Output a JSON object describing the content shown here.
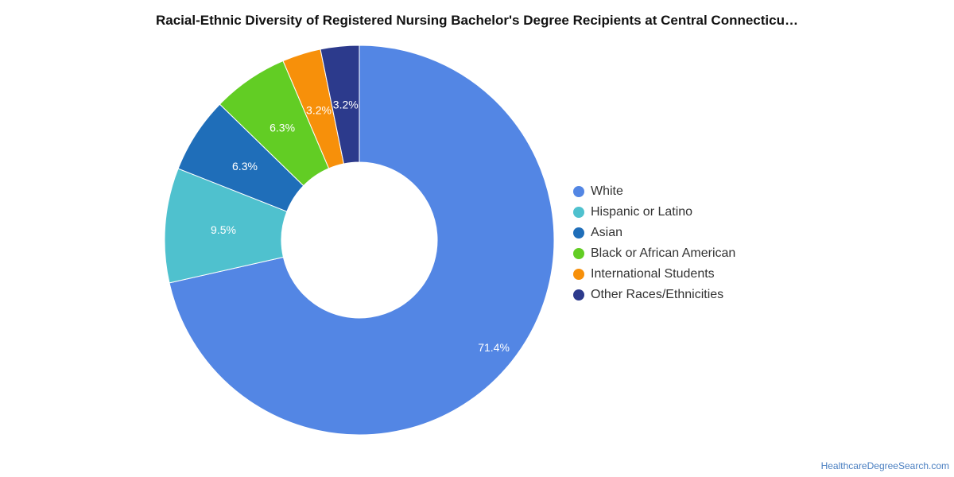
{
  "chart_data": {
    "type": "pie",
    "variant": "donut",
    "title": "Racial-Ethnic Diversity of Registered Nursing Bachelor's Degree Recipients at Central Connecticu…",
    "legend_position": "right",
    "slices": [
      {
        "label": "White",
        "value": 71.4,
        "display": "71.4%",
        "color": "#5386e4"
      },
      {
        "label": "Hispanic or Latino",
        "value": 9.5,
        "display": "9.5%",
        "color": "#4fc1ce"
      },
      {
        "label": "Asian",
        "value": 6.3,
        "display": "6.3%",
        "color": "#1f6eb9"
      },
      {
        "label": "Black or African American",
        "value": 6.3,
        "display": "6.3%",
        "color": "#62cd24"
      },
      {
        "label": "International Students",
        "value": 3.2,
        "display": "3.2%",
        "color": "#f7900a"
      },
      {
        "label": "Other Races/Ethnicities",
        "value": 3.2,
        "display": "3.2%",
        "color": "#2c3a8c"
      }
    ]
  },
  "footer": {
    "source": "HealthcareDegreeSearch.com"
  }
}
